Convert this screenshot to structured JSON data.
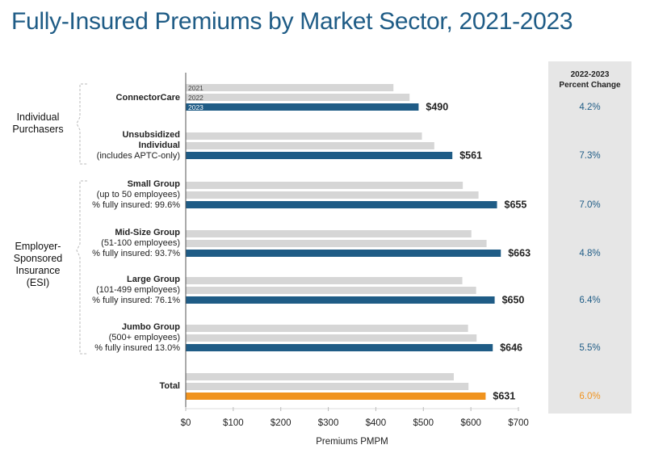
{
  "page": {
    "title": "Fully-Insured Premiums by Market Sector, 2021-2023"
  },
  "pct_header": {
    "line1": "2022-2023",
    "line2": "Percent Change"
  },
  "groups": [
    "Individual Purchasers",
    "Employer-Sponsored Insurance (ESI)"
  ],
  "groups_lines": {
    "individual": [
      "Individual",
      "Purchasers"
    ],
    "esi": [
      "Employer-",
      "Sponsored",
      "Insurance",
      "(ESI)"
    ]
  },
  "chart_data": {
    "type": "bar",
    "orientation": "horizontal",
    "title": "Fully-Insured Premiums by Market Sector, 2021-2023",
    "xlabel": "Premiums PMPM",
    "xlim": [
      0,
      700
    ],
    "xticks": [
      "$0",
      "$100",
      "$200",
      "$300",
      "$400",
      "$500",
      "$600",
      "$700"
    ],
    "xtick_values": [
      0,
      100,
      200,
      300,
      400,
      500,
      600,
      700
    ],
    "series_names": [
      "2021",
      "2022",
      "2023"
    ],
    "categories": [
      {
        "lines": [
          "ConnectorCare"
        ],
        "bold_lines": 1,
        "values": [
          437,
          471,
          490
        ],
        "label_2023": "$490",
        "pct_change": "4.2%"
      },
      {
        "lines": [
          "Unsubsidized",
          "Individual",
          "(includes APTC-only)"
        ],
        "bold_lines": 2,
        "values": [
          497,
          523,
          561
        ],
        "label_2023": "$561",
        "pct_change": "7.3%"
      },
      {
        "lines": [
          "Small Group",
          "(up to 50 employees)",
          "% fully insured: 99.6%"
        ],
        "bold_lines": 1,
        "values": [
          583,
          616,
          655
        ],
        "label_2023": "$655",
        "pct_change": "7.0%"
      },
      {
        "lines": [
          "Mid-Size Group",
          "(51-100 employees)",
          "% fully insured: 93.7%"
        ],
        "bold_lines": 1,
        "values": [
          601,
          633,
          663
        ],
        "label_2023": "$663",
        "pct_change": "4.8%"
      },
      {
        "lines": [
          "Large Group",
          "(101-499 employees)",
          "% fully insured: 76.1%"
        ],
        "bold_lines": 1,
        "values": [
          582,
          611,
          650
        ],
        "label_2023": "$650",
        "pct_change": "6.4%"
      },
      {
        "lines": [
          "Jumbo Group",
          "(500+ employees)",
          "% fully insured 13.0%"
        ],
        "bold_lines": 1,
        "values": [
          594,
          612,
          646
        ],
        "label_2023": "$646",
        "pct_change": "5.5%"
      },
      {
        "lines": [
          "Total"
        ],
        "bold_lines": 1,
        "values": [
          564,
          595,
          631
        ],
        "label_2023": "$631",
        "pct_change": "6.0%",
        "is_total": true
      }
    ],
    "colors": {
      "prior_years": "#d6d6d6",
      "2023": "#1f5c86",
      "total_2023": "#f0931e",
      "axis": "#555555"
    }
  }
}
